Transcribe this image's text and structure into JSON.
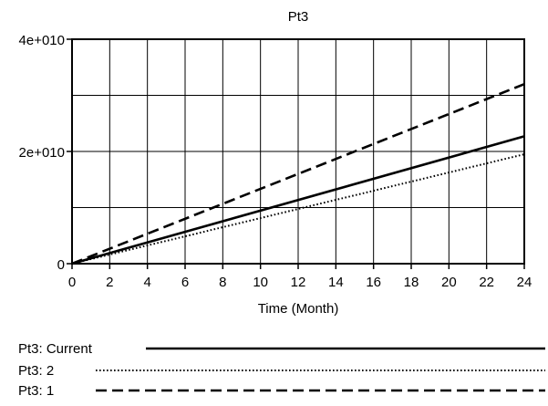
{
  "chart_data": {
    "type": "line",
    "title": "Pt3",
    "xlabel": "Time (Month)",
    "ylabel": "",
    "xlim": [
      0,
      24
    ],
    "ylim": [
      0,
      40000000000
    ],
    "x_ticks": [
      0,
      2,
      4,
      6,
      8,
      10,
      12,
      14,
      16,
      18,
      20,
      22,
      24
    ],
    "x_tick_labels": [
      "0",
      "2",
      "4",
      "6",
      "8",
      "10",
      "12",
      "14",
      "16",
      "18",
      "20",
      "22",
      "24"
    ],
    "y_ticks": [
      0,
      20000000000,
      40000000000
    ],
    "y_tick_labels": [
      "0",
      "2e+010",
      "4e+010"
    ],
    "grid": true,
    "legend_position": "bottom",
    "series": [
      {
        "name": "Pt3: Current",
        "style": "solid",
        "color": "#000000",
        "x": [
          0,
          24
        ],
        "values": [
          0,
          22700000000
        ]
      },
      {
        "name": "Pt3: 2",
        "style": "dotted",
        "color": "#000000",
        "x": [
          0,
          24
        ],
        "values": [
          0,
          19500000000
        ]
      },
      {
        "name": "Pt3: 1",
        "style": "dashed",
        "color": "#000000",
        "x": [
          0,
          24
        ],
        "values": [
          0,
          32000000000
        ]
      }
    ]
  }
}
